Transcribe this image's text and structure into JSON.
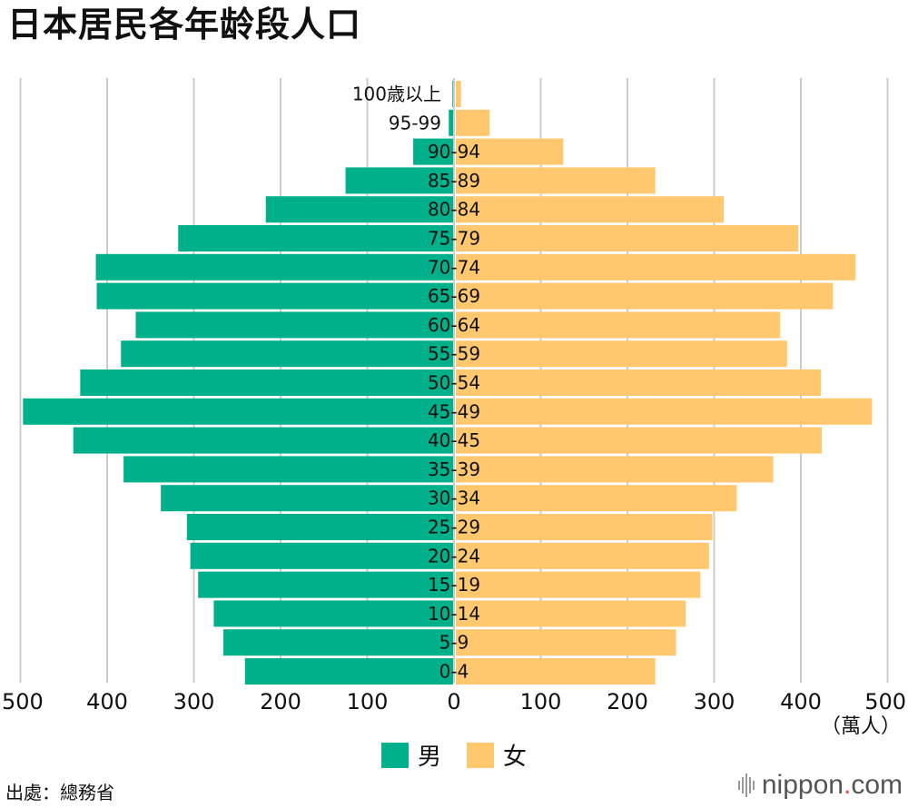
{
  "title": "日本居民各年龄段人口",
  "legend": {
    "male": "男",
    "female": "女"
  },
  "colors": {
    "male": "#00b08a",
    "female": "#ffc86e",
    "grid": "#cccccc"
  },
  "unit": "（萬人）",
  "source": "出處：總務省",
  "brand": {
    "name": "nippon",
    "dot": ".",
    "suffix": "com"
  },
  "chart_data": {
    "type": "bar",
    "orientation": "horizontal-population-pyramid",
    "title": "日本居民各年龄段人口",
    "categories": [
      "100歳以上",
      "95-99",
      "90-94",
      "85-89",
      "80-84",
      "75-79",
      "70-74",
      "65-69",
      "60-64",
      "55-59",
      "50-54",
      "45-49",
      "40-45",
      "35-39",
      "30-34",
      "25-29",
      "20-24",
      "15-19",
      "10-14",
      "5-9",
      "0-4"
    ],
    "series": [
      {
        "name": "男",
        "values": [
          0.8,
          5,
          46,
          124,
          216,
          317,
          412,
          411,
          366,
          383,
          430,
          496,
          438,
          380,
          337,
          307,
          303,
          294,
          276,
          265,
          240
        ]
      },
      {
        "name": "女",
        "values": [
          6,
          39,
          124,
          230,
          309,
          395,
          461,
          435,
          374,
          382,
          421,
          480,
          422,
          366,
          324,
          296,
          292,
          282,
          265,
          254,
          230
        ]
      }
    ],
    "xlim": [
      -500,
      500
    ],
    "xticks": [
      -500,
      -400,
      -300,
      -200,
      -100,
      0,
      100,
      200,
      300,
      400,
      500
    ],
    "xtick_labels": [
      "500",
      "400",
      "300",
      "200",
      "100",
      "0",
      "100",
      "200",
      "300",
      "400",
      "500"
    ],
    "xlabel": "（萬人）",
    "grid": true,
    "legend_position": "bottom-center"
  }
}
